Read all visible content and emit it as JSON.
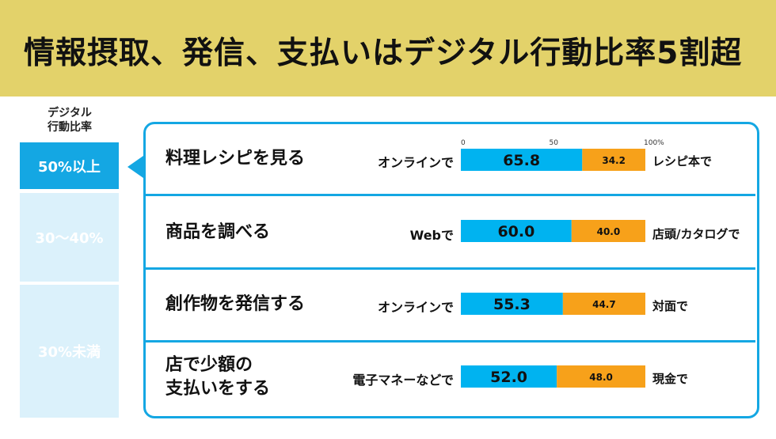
{
  "title": "情報摂取、発信、支払いはデジタル行動比率5割超",
  "axis_caption": "デジタル\n行動比率",
  "tiers": [
    "50%以上",
    "30～40%",
    "30%未満"
  ],
  "scale_ticks": [
    "0",
    "50",
    "100%"
  ],
  "rows": [
    {
      "label": "料理レシピを見る",
      "left": "オンラインで",
      "right": "レシピ本で"
    },
    {
      "label": "商品を調べる",
      "left": "Webで",
      "right": "店頭/カタログで"
    },
    {
      "label": "創作物を発信する",
      "left": "オンラインで",
      "right": "対面で"
    },
    {
      "label": "店で少額の\n支払いをする",
      "left": "電子マネーなどで",
      "right": "現金で"
    }
  ],
  "colors": {
    "digital": "#00b3f0",
    "analog": "#f7a11a",
    "header": "#e3d26a",
    "accent": "#14a7e3",
    "tier_light": "#dbf1fb"
  },
  "chart_data": {
    "type": "bar",
    "orientation": "horizontal",
    "stacked": true,
    "categories": [
      "料理レシピを見る",
      "商品を調べる",
      "創作物を発信する",
      "店で少額の支払いをする"
    ],
    "series": [
      {
        "values": [
          65.8,
          60.0,
          55.3,
          52.0
        ]
      },
      {
        "values": [
          34.2,
          40.0,
          44.7,
          48.0
        ]
      }
    ],
    "xlim": [
      0,
      100
    ],
    "value_labels": [
      [
        "65.8",
        "60.0",
        "55.3",
        "52.0"
      ],
      [
        "34.2",
        "40.0",
        "44.7",
        "48.0"
      ]
    ]
  }
}
